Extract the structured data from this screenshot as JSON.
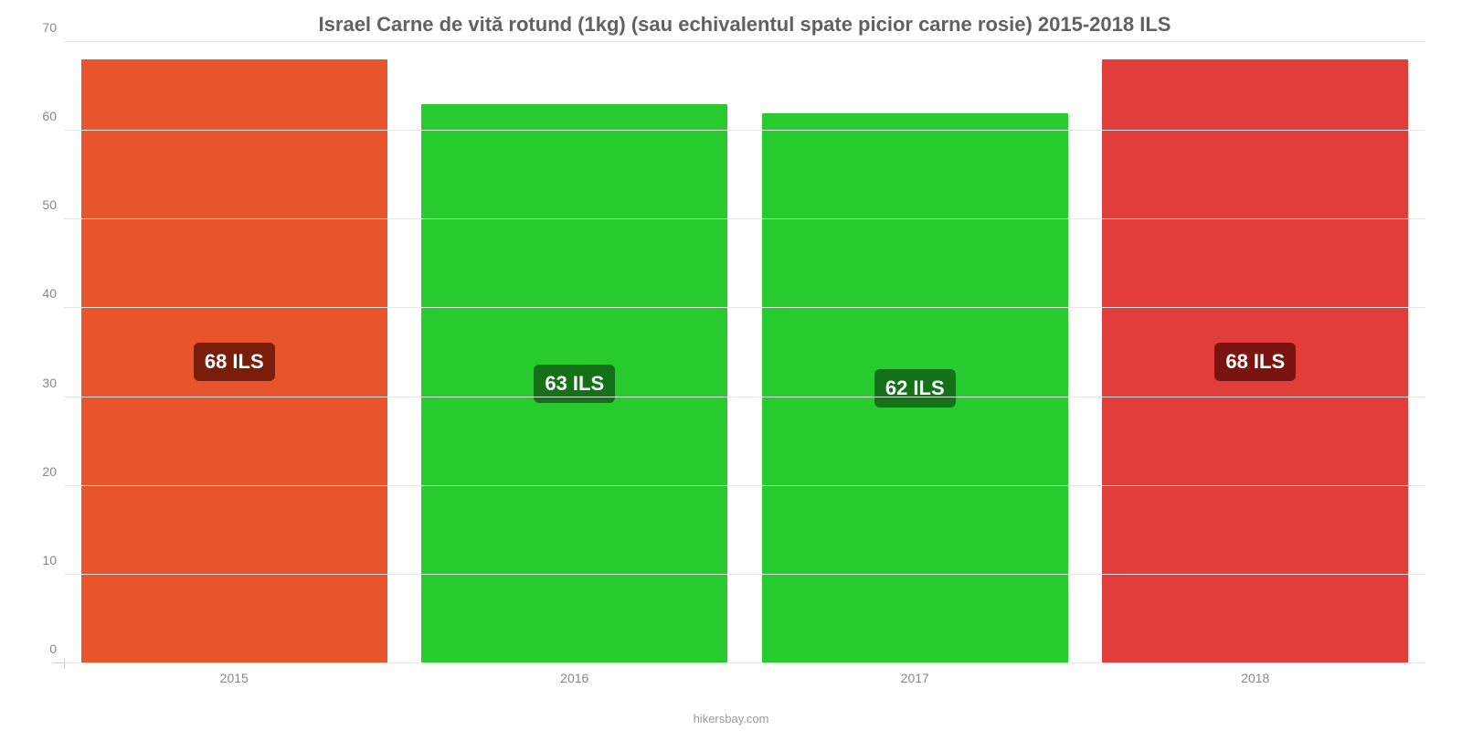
{
  "chart": {
    "type": "bar",
    "title": "Israel Carne de vită rotund (1kg) (sau echivalentul spate picior carne rosie) 2015-2018 ILS",
    "title_color": "#616161",
    "title_fontsize": 22,
    "background_color": "#ffffff",
    "grid_color": "#e6e6e6",
    "axis_label_color": "#888888",
    "axis_fontsize": 14,
    "ylim": [
      0,
      70
    ],
    "ytick_step": 10,
    "yticks": [
      0,
      10,
      20,
      30,
      40,
      50,
      60,
      70
    ],
    "categories": [
      "2015",
      "2016",
      "2017",
      "2018"
    ],
    "values": [
      68,
      63,
      62,
      68
    ],
    "value_labels": [
      "68 ILS",
      "63 ILS",
      "62 ILS",
      "68 ILS"
    ],
    "bar_colors": [
      "#e8552d",
      "#28cb2d",
      "#28cb2d",
      "#e13d3a"
    ],
    "badge_bg_colors": [
      "#7a1e0b",
      "#14711a",
      "#14711a",
      "#7a1410"
    ],
    "badge_text_color": "#ffffff",
    "value_fontsize": 22,
    "bar_width": 0.9,
    "footer": "hikersbay.com",
    "footer_color": "#9a9a9a"
  }
}
